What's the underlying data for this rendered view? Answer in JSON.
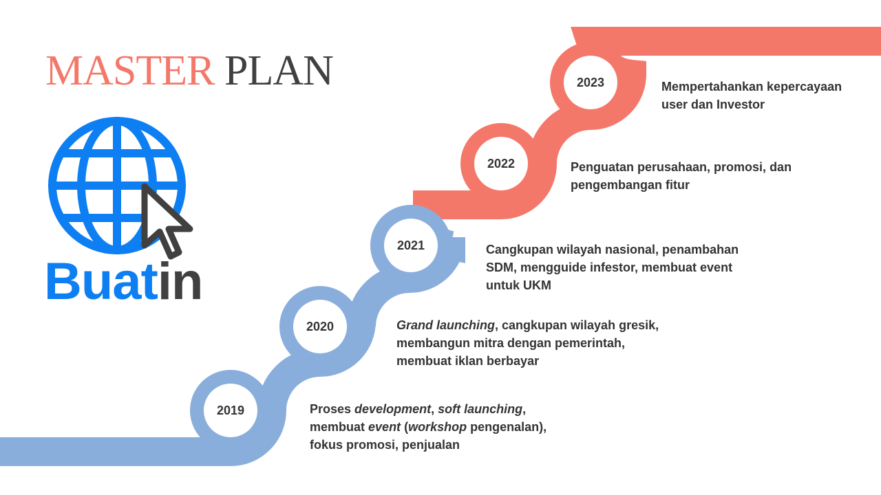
{
  "title": {
    "word1": "MASTER",
    "word2": "PLAN"
  },
  "logo": {
    "brand_part1": "Buat",
    "brand_part2": "in",
    "icon": "globe-cursor-icon"
  },
  "colors": {
    "coral": "#f4786a",
    "blue": "#8aaedb",
    "logo_blue": "#0d7ff2",
    "dark": "#404040",
    "text": "#333333"
  },
  "milestones": [
    {
      "year": "2019",
      "lines": [
        [
          {
            "t": "Proses "
          },
          {
            "t": "development",
            "i": true
          },
          {
            "t": ", "
          },
          {
            "t": "soft launching",
            "i": true
          },
          {
            "t": ","
          }
        ],
        [
          {
            "t": "membuat "
          },
          {
            "t": "event",
            "i": true
          },
          {
            "t": " ("
          },
          {
            "t": "workshop",
            "i": true
          },
          {
            "t": " pengenalan),"
          }
        ],
        [
          {
            "t": "fokus promosi, penjualan"
          }
        ]
      ]
    },
    {
      "year": "2020",
      "lines": [
        [
          {
            "t": "Grand launching",
            "i": true
          },
          {
            "t": ", cangkupan wilayah gresik,"
          }
        ],
        [
          {
            "t": "membangun mitra dengan pemerintah,"
          }
        ],
        [
          {
            "t": "membuat iklan berbayar"
          }
        ]
      ]
    },
    {
      "year": "2021",
      "lines": [
        [
          {
            "t": "Cangkupan wilayah nasional, penambahan"
          }
        ],
        [
          {
            "t": "SDM, mengguide infestor, membuat event"
          }
        ],
        [
          {
            "t": "untuk UKM"
          }
        ]
      ]
    },
    {
      "year": "2022",
      "lines": [
        [
          {
            "t": "Penguatan perusahaan, promosi, dan"
          }
        ],
        [
          {
            "t": "pengembangan fitur"
          }
        ]
      ]
    },
    {
      "year": "2023",
      "lines": [
        [
          {
            "t": "Mempertahankan kepercayaan"
          }
        ],
        [
          {
            "t": "user dan Investor"
          }
        ]
      ]
    }
  ]
}
